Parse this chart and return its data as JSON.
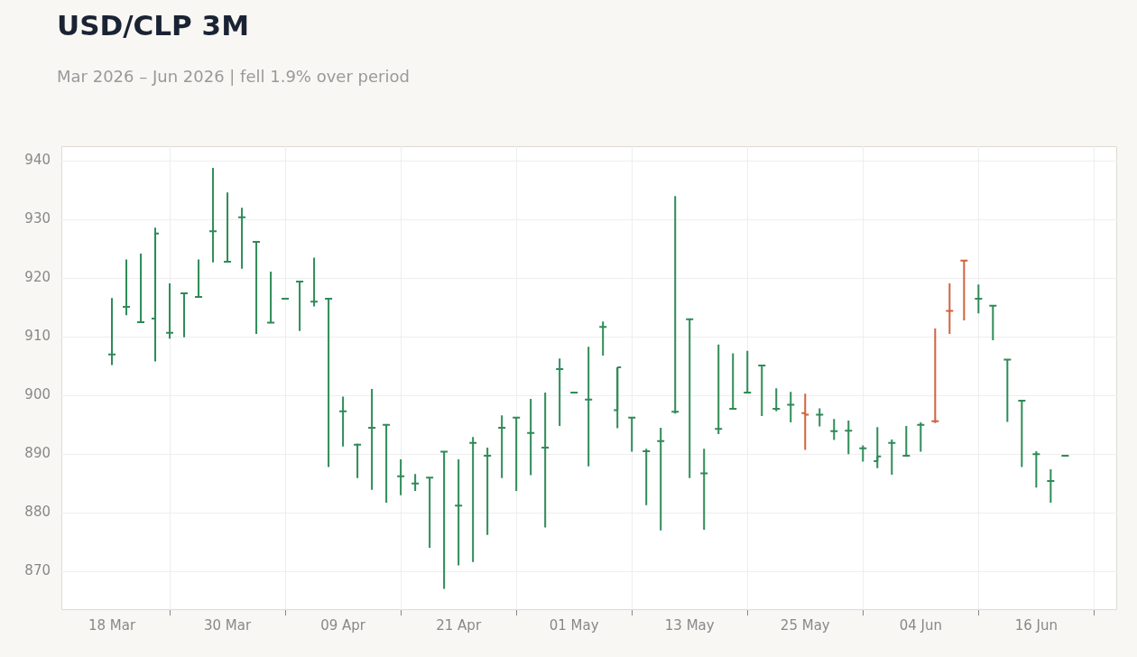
{
  "chart_data": {
    "type": "candlestick",
    "title": "USD/CLP 3M",
    "subtitle": "Mar 2026 – Jun 2026 | fell 1.9% over period",
    "categories": [
      "18 Mar",
      null,
      null,
      null,
      null,
      null,
      null,
      null,
      "30 Mar",
      null,
      null,
      null,
      null,
      null,
      null,
      null,
      "09 Apr",
      null,
      null,
      null,
      null,
      null,
      null,
      null,
      "21 Apr",
      null,
      null,
      null,
      null,
      null,
      null,
      null,
      "01 May",
      null,
      null,
      null,
      null,
      null,
      null,
      null,
      "13 May",
      null,
      null,
      null,
      null,
      null,
      null,
      null,
      "25 May",
      null,
      null,
      null,
      null,
      null,
      null,
      null,
      "04 Jun",
      null,
      null,
      null,
      null,
      null,
      null,
      null,
      "16 Jun",
      null,
      null
    ],
    "ohlc": [
      [
        907.0,
        916.6,
        905.2,
        907.0
      ],
      [
        915.1,
        923.2,
        913.7,
        915.1
      ],
      [
        912.5,
        924.2,
        912.4,
        912.5
      ],
      [
        913.1,
        928.6,
        905.8,
        927.6
      ],
      [
        910.7,
        919.1,
        909.7,
        910.7
      ],
      [
        917.4,
        917.4,
        909.9,
        917.4
      ],
      [
        916.8,
        923.2,
        916.8,
        916.8
      ],
      [
        928.0,
        938.8,
        922.7,
        928.0
      ],
      [
        922.8,
        934.6,
        922.8,
        922.8
      ],
      [
        930.4,
        932.0,
        921.6,
        930.4
      ],
      [
        926.2,
        926.2,
        910.5,
        926.2
      ],
      [
        912.4,
        921.1,
        912.4,
        912.4
      ],
      [
        916.5,
        916.5,
        916.5,
        916.5
      ],
      [
        919.4,
        919.4,
        911.0,
        919.4
      ],
      [
        916.0,
        923.5,
        915.2,
        916.0
      ],
      [
        916.5,
        916.5,
        887.8,
        916.5
      ],
      [
        897.3,
        899.8,
        891.3,
        897.3
      ],
      [
        891.6,
        891.8,
        885.9,
        891.6
      ],
      [
        894.5,
        901.1,
        883.9,
        894.5
      ],
      [
        895.0,
        895.0,
        881.7,
        895.0
      ],
      [
        886.2,
        889.1,
        883.0,
        886.2
      ],
      [
        885.0,
        886.6,
        883.7,
        885.0
      ],
      [
        886.0,
        886.0,
        874.0,
        886.0
      ],
      [
        890.4,
        890.4,
        867.0,
        890.4
      ],
      [
        881.2,
        889.1,
        871.0,
        881.2
      ],
      [
        891.9,
        892.9,
        871.6,
        891.9
      ],
      [
        889.7,
        891.1,
        876.2,
        889.7
      ],
      [
        894.5,
        896.6,
        885.9,
        894.5
      ],
      [
        896.2,
        896.2,
        883.7,
        896.2
      ],
      [
        893.6,
        899.4,
        886.4,
        893.6
      ],
      [
        891.1,
        900.5,
        877.5,
        891.1
      ],
      [
        904.5,
        906.3,
        894.8,
        904.5
      ],
      [
        900.5,
        900.5,
        900.5,
        900.5
      ],
      [
        899.3,
        908.3,
        887.9,
        899.3
      ],
      [
        911.7,
        912.6,
        906.8,
        911.7
      ],
      [
        897.5,
        904.8,
        894.4,
        904.8
      ],
      [
        896.2,
        896.2,
        890.4,
        896.2
      ],
      [
        890.5,
        890.9,
        881.3,
        890.5
      ],
      [
        892.2,
        894.5,
        877.0,
        892.2
      ],
      [
        897.2,
        934.0,
        896.9,
        897.2
      ],
      [
        913.0,
        913.0,
        885.9,
        913.0
      ],
      [
        886.7,
        890.9,
        877.1,
        886.7
      ],
      [
        894.3,
        908.7,
        893.4,
        894.3
      ],
      [
        897.7,
        907.2,
        897.7,
        897.7
      ],
      [
        900.5,
        907.6,
        900.5,
        900.5
      ],
      [
        905.1,
        905.1,
        896.5,
        905.1
      ],
      [
        897.7,
        901.2,
        897.3,
        897.7
      ],
      [
        898.4,
        900.6,
        895.4,
        898.4
      ],
      [
        897.0,
        900.3,
        890.7,
        896.7
      ],
      [
        896.7,
        897.8,
        894.7,
        896.7
      ],
      [
        893.9,
        896.0,
        892.4,
        893.9
      ],
      [
        894.0,
        895.7,
        890.0,
        894.0
      ],
      [
        891.0,
        891.5,
        888.7,
        891.0
      ],
      [
        888.8,
        894.6,
        887.6,
        889.6
      ],
      [
        891.9,
        892.5,
        886.5,
        891.9
      ],
      [
        889.7,
        894.8,
        889.7,
        889.7
      ],
      [
        895.0,
        895.4,
        890.4,
        895.0
      ],
      [
        895.6,
        911.4,
        895.3,
        895.6
      ],
      [
        914.4,
        919.1,
        910.5,
        914.4
      ],
      [
        923.0,
        923.0,
        912.8,
        923.0
      ],
      [
        916.5,
        918.9,
        914.0,
        916.5
      ],
      [
        915.3,
        915.3,
        909.4,
        915.3
      ],
      [
        906.1,
        906.1,
        895.5,
        906.1
      ],
      [
        899.1,
        899.1,
        887.8,
        899.1
      ],
      [
        890.0,
        890.5,
        884.3,
        890.0
      ],
      [
        885.4,
        887.4,
        881.7,
        885.4
      ],
      [
        889.7,
        889.7,
        889.7,
        889.7
      ]
    ],
    "colors": [
      "#2e8b57",
      "#2e8b57",
      "#2e8b57",
      "#2e8b57",
      "#2e8b57",
      "#2e8b57",
      "#2e8b57",
      "#2e8b57",
      "#2e8b57",
      "#2e8b57",
      "#2e8b57",
      "#2e8b57",
      "#2e8b57",
      "#2e8b57",
      "#2e8b57",
      "#2e8b57",
      "#2e8b57",
      "#2e8b57",
      "#2e8b57",
      "#2e8b57",
      "#2e8b57",
      "#2e8b57",
      "#2e8b57",
      "#2e8b57",
      "#2e8b57",
      "#2e8b57",
      "#2e8b57",
      "#2e8b57",
      "#2e8b57",
      "#2e8b57",
      "#2e8b57",
      "#2e8b57",
      "#2e8b57",
      "#2e8b57",
      "#2e8b57",
      "#2e8b57",
      "#2e8b57",
      "#2e8b57",
      "#2e8b57",
      "#2e8b57",
      "#2e8b57",
      "#2e8b57",
      "#2e8b57",
      "#2e8b57",
      "#2e8b57",
      "#2e8b57",
      "#2e8b57",
      "#2e8b57",
      "#d0623f",
      "#2e8b57",
      "#2e8b57",
      "#2e8b57",
      "#2e8b57",
      "#2e8b57",
      "#2e8b57",
      "#2e8b57",
      "#2e8b57",
      "#d0623f",
      "#d0623f",
      "#d0623f",
      "#2e8b57",
      "#2e8b57",
      "#2e8b57",
      "#2e8b57",
      "#2e8b57",
      "#2e8b57",
      "#2e8b57"
    ],
    "ylim": [
      863.4,
      942.5
    ],
    "yticks": [
      870,
      880,
      890,
      900,
      910,
      920,
      930,
      940
    ],
    "grid": true
  }
}
